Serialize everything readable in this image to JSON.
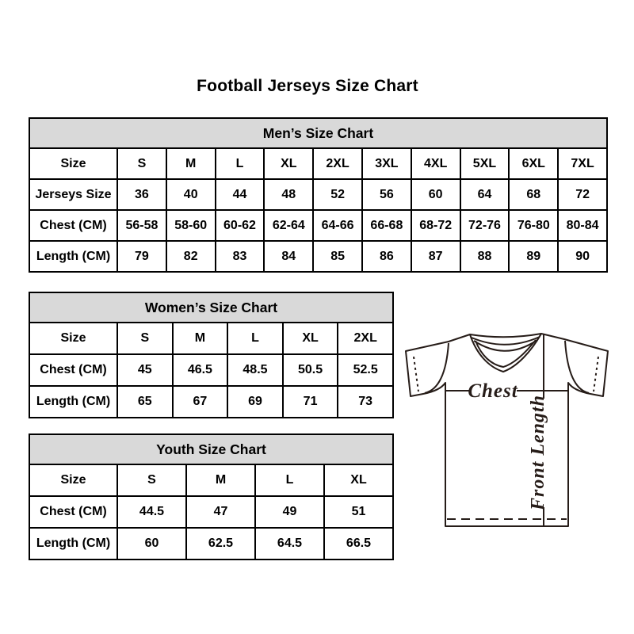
{
  "title": "Football Jerseys Size Chart",
  "colors": {
    "table_header_bg": "#d9d9d9",
    "table_border": "#000000",
    "jersey_line": "#261c18"
  },
  "tables": {
    "men": {
      "header": "Men’s Size Chart",
      "rows": [
        [
          "Size",
          "S",
          "M",
          "L",
          "XL",
          "2XL",
          "3XL",
          "4XL",
          "5XL",
          "6XL",
          "7XL"
        ],
        [
          "Jerseys Size",
          "36",
          "40",
          "44",
          "48",
          "52",
          "56",
          "60",
          "64",
          "68",
          "72"
        ],
        [
          "Chest (CM)",
          "56-58",
          "58-60",
          "60-62",
          "62-64",
          "64-66",
          "66-68",
          "68-72",
          "72-76",
          "76-80",
          "80-84"
        ],
        [
          "Length (CM)",
          "79",
          "82",
          "83",
          "84",
          "85",
          "86",
          "87",
          "88",
          "89",
          "90"
        ]
      ]
    },
    "women": {
      "header": "Women’s Size Chart",
      "rows": [
        [
          "Size",
          "S",
          "M",
          "L",
          "XL",
          "2XL"
        ],
        [
          "Chest (CM)",
          "45",
          "46.5",
          "48.5",
          "50.5",
          "52.5"
        ],
        [
          "Length (CM)",
          "65",
          "67",
          "69",
          "71",
          "73"
        ]
      ]
    },
    "youth": {
      "header": "Youth Size Chart",
      "rows": [
        [
          "Size",
          "S",
          "M",
          "L",
          "XL"
        ],
        [
          "Chest (CM)",
          "44.5",
          "47",
          "49",
          "51"
        ],
        [
          "Length (CM)",
          "60",
          "62.5",
          "64.5",
          "66.5"
        ]
      ]
    }
  },
  "diagram": {
    "chest_label": "Chest",
    "front_length_label": "Front Length"
  }
}
